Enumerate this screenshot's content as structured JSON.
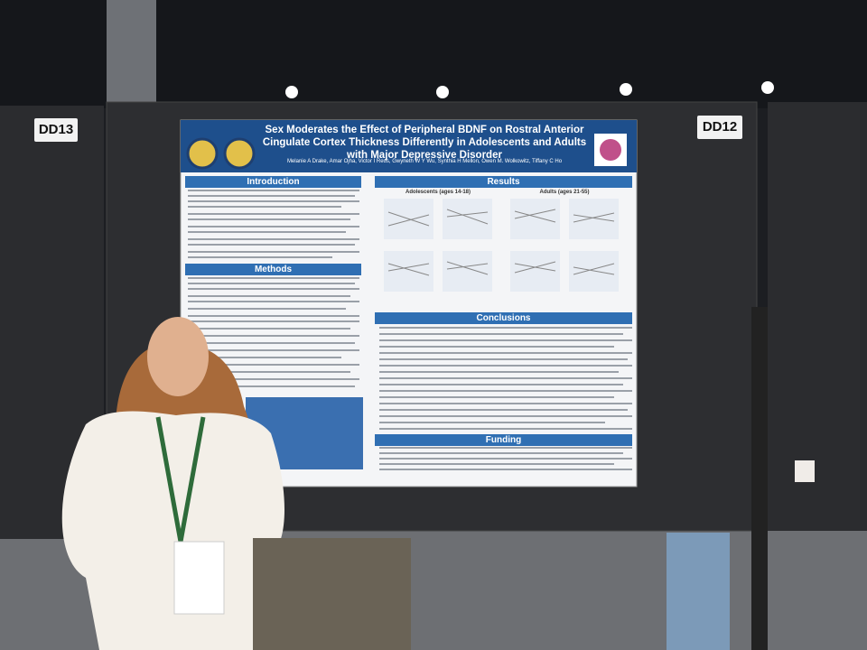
{
  "booths": [
    "DD13",
    "DD12"
  ],
  "poster": {
    "title": "Sex Moderates the Effect of Peripheral BDNF on Rostral Anterior Cingulate Cortex Thickness Differently in Adolescents and Adults with Major Depressive Disorder",
    "authors": "Melanie A Drake, Amar Ojha, Victor I Reus, Gwyneth W Y Wu, Synthia H Mellon, Owen M. Wolkowitz, Tiffany C Ho",
    "sections": {
      "introduction": "Introduction",
      "methods": "Methods",
      "results": "Results",
      "conclusions": "Conclusions",
      "funding": "Funding"
    },
    "results_groups": [
      "Adolescents (ages 14-18)",
      "Adults (ages 21-55)"
    ]
  }
}
